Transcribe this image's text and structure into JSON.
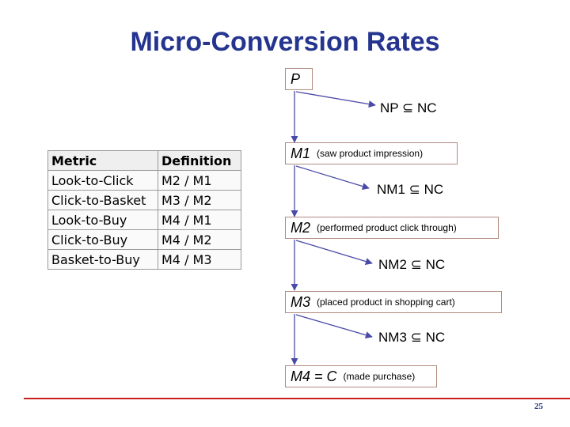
{
  "title": "Micro-Conversion Rates",
  "page_number": "25",
  "nodes": [
    {
      "label": "P",
      "desc": ""
    },
    {
      "label": "M1",
      "desc": "(saw product impression)"
    },
    {
      "label": "M2",
      "desc": "(performed product click through)"
    },
    {
      "label": "M3",
      "desc": "(placed product in shopping cart)"
    },
    {
      "label": "M4 = C",
      "desc": "(made purchase)"
    }
  ],
  "exits": [
    {
      "prefix": "NP",
      "suffix": "NC"
    },
    {
      "prefix": "NM1",
      "suffix": "NC"
    },
    {
      "prefix": "NM2",
      "suffix": "NC"
    },
    {
      "prefix": "NM3",
      "suffix": "NC"
    }
  ],
  "subset_symbol": "⊆",
  "table": {
    "headers": [
      "Metric",
      "Definition"
    ],
    "rows": [
      [
        "Look-to-Click",
        "M2 / M1"
      ],
      [
        "Click-to-Basket",
        "M3 / M2"
      ],
      [
        "Look-to-Buy",
        "M4 / M1"
      ],
      [
        "Click-to-Buy",
        "M4 / M2"
      ],
      [
        "Basket-to-Buy",
        "M4 / M3"
      ]
    ]
  },
  "colors": {
    "title": "#24348f",
    "arrow": "#4a4aa8",
    "box_border": "#b08a80",
    "footer_line": "#c81e1e"
  }
}
